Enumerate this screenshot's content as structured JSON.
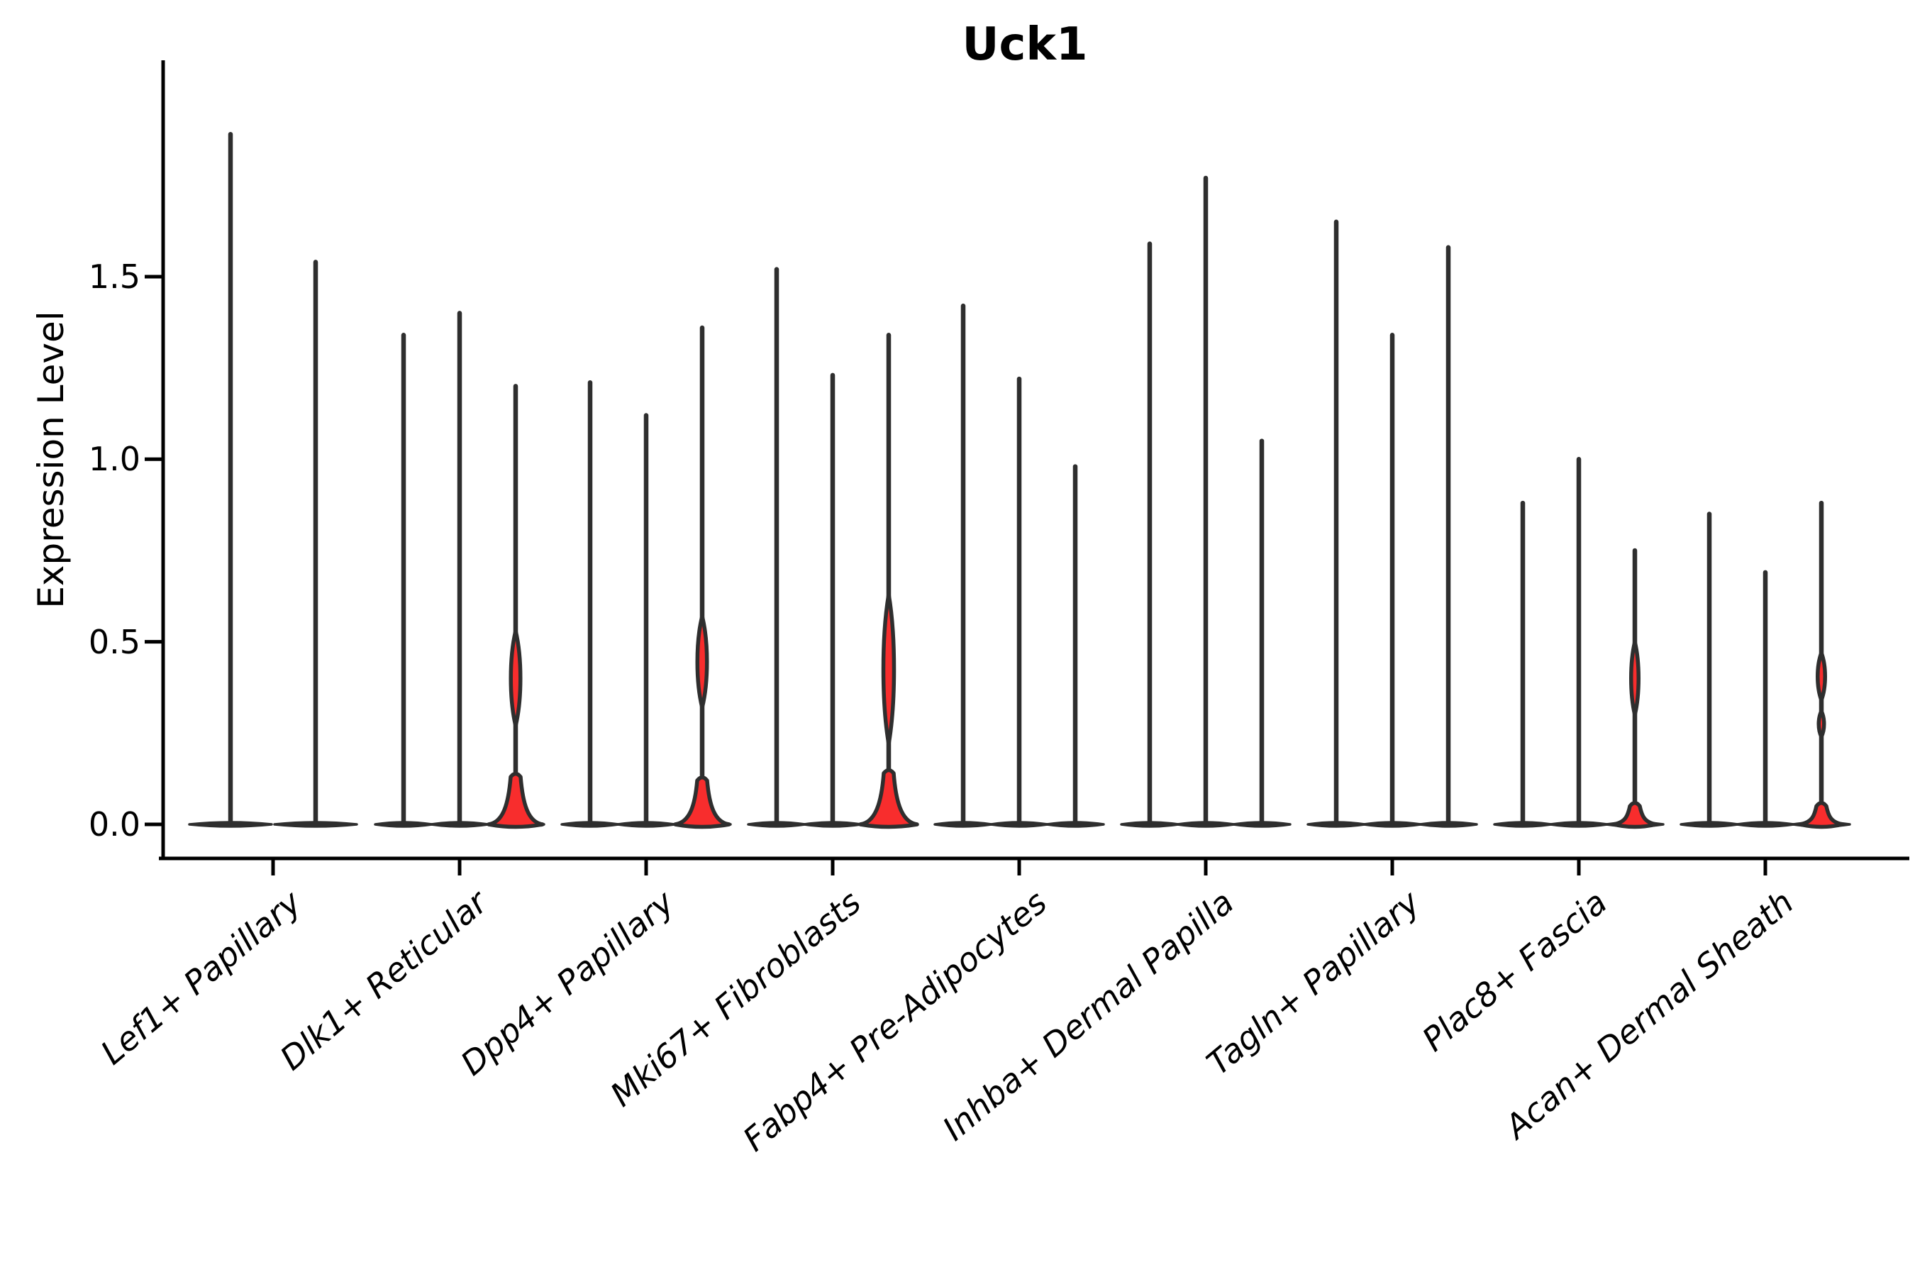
{
  "chart_data": {
    "type": "violin",
    "title": "Uck1",
    "ylabel": "Expression Level",
    "xlabel": "",
    "ylim": [
      -0.09,
      2.09
    ],
    "yticks": [
      {
        "label": "0.0",
        "value": 0.0
      },
      {
        "label": "0.5",
        "value": 0.5
      },
      {
        "label": "1.0",
        "value": 1.0
      },
      {
        "label": "1.5",
        "value": 1.5
      }
    ],
    "legend": "none",
    "grid": false,
    "colors": {
      "violin_fill": "#f82d2d",
      "violin_edge": "#2e2e2e",
      "axis_ink": "#000000"
    },
    "groups": [
      {
        "label": "Lef1+ Papillary",
        "violins": [
          {
            "max": 1.89
          },
          {
            "max": 1.54
          }
        ]
      },
      {
        "label": "Dlk1+ Reticular",
        "violins": [
          {
            "max": 1.34
          },
          {
            "max": 1.4
          },
          {
            "max": 1.2,
            "body": {
              "bell": [
                0.13,
                38
              ],
              "lenses": [
                [
                  0.27,
                  0.53,
                  9
                ]
              ]
            }
          }
        ]
      },
      {
        "label": "Dpp4+ Papillary",
        "violins": [
          {
            "max": 1.21
          },
          {
            "max": 1.12
          },
          {
            "max": 1.36,
            "body": {
              "bell": [
                0.12,
                38
              ],
              "lenses": [
                [
                  0.32,
                  0.57,
                  9
                ]
              ]
            }
          }
        ]
      },
      {
        "label": "Mki67+ Fibroblasts",
        "violins": [
          {
            "max": 1.52
          },
          {
            "max": 1.23
          },
          {
            "max": 1.34,
            "body": {
              "bell": [
                0.14,
                40
              ],
              "lenses": [
                [
                  0.22,
                  0.63,
                  10
                ]
              ]
            }
          }
        ]
      },
      {
        "label": "Fabp4+ Pre-Adipocytes",
        "violins": [
          {
            "max": 1.42
          },
          {
            "max": 1.22
          },
          {
            "max": 0.98
          }
        ]
      },
      {
        "label": "Inhba+ Dermal Papilla",
        "violins": [
          {
            "max": 1.59
          },
          {
            "max": 1.77
          },
          {
            "max": 1.05
          }
        ]
      },
      {
        "label": "Tagln+ Papillary",
        "violins": [
          {
            "max": 1.65
          },
          {
            "max": 1.34
          },
          {
            "max": 1.58
          }
        ]
      },
      {
        "label": "Plac8+ Fascia",
        "violins": [
          {
            "max": 0.88
          },
          {
            "max": 1.0
          },
          {
            "max": 0.75,
            "body": {
              "bell": [
                0.05,
                30
              ],
              "lenses": [
                [
                  0.3,
                  0.5,
                  7
                ]
              ]
            }
          }
        ]
      },
      {
        "label": "Acan+ Dermal Sheath",
        "violins": [
          {
            "max": 0.85
          },
          {
            "max": 0.69
          },
          {
            "max": 0.88,
            "body": {
              "bell": [
                0.05,
                30
              ],
              "lenses": [
                [
                  0.24,
                  0.31,
                  5
                ],
                [
                  0.34,
                  0.47,
                  7
                ]
              ]
            }
          }
        ]
      }
    ]
  }
}
